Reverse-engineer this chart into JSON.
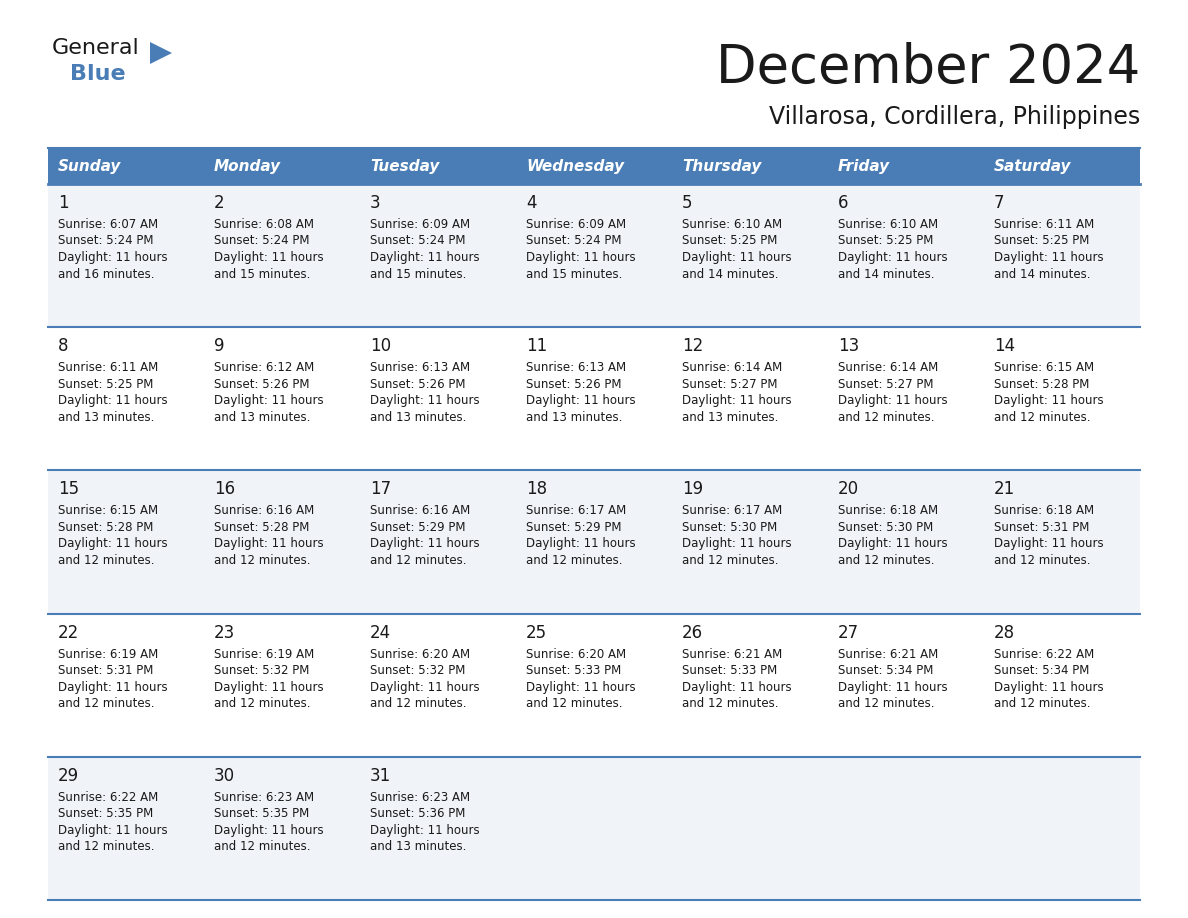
{
  "title": "December 2024",
  "subtitle": "Villarosa, Cordillera, Philippines",
  "header_color": "#4a7db5",
  "header_text_color": "#FFFFFF",
  "grid_line_color": "#4a7db5",
  "day_names": [
    "Sunday",
    "Monday",
    "Tuesday",
    "Wednesday",
    "Thursday",
    "Friday",
    "Saturday"
  ],
  "background_color": "#FFFFFF",
  "cell_bg_even": "#f0f4f8",
  "cell_bg_odd": "#FFFFFF",
  "days": [
    {
      "day": 1,
      "col": 0,
      "row": 0,
      "sunrise": "6:07 AM",
      "sunset": "5:24 PM",
      "daylight": "11 hours and 16 minutes."
    },
    {
      "day": 2,
      "col": 1,
      "row": 0,
      "sunrise": "6:08 AM",
      "sunset": "5:24 PM",
      "daylight": "11 hours and 15 minutes."
    },
    {
      "day": 3,
      "col": 2,
      "row": 0,
      "sunrise": "6:09 AM",
      "sunset": "5:24 PM",
      "daylight": "11 hours and 15 minutes."
    },
    {
      "day": 4,
      "col": 3,
      "row": 0,
      "sunrise": "6:09 AM",
      "sunset": "5:24 PM",
      "daylight": "11 hours and 15 minutes."
    },
    {
      "day": 5,
      "col": 4,
      "row": 0,
      "sunrise": "6:10 AM",
      "sunset": "5:25 PM",
      "daylight": "11 hours and 14 minutes."
    },
    {
      "day": 6,
      "col": 5,
      "row": 0,
      "sunrise": "6:10 AM",
      "sunset": "5:25 PM",
      "daylight": "11 hours and 14 minutes."
    },
    {
      "day": 7,
      "col": 6,
      "row": 0,
      "sunrise": "6:11 AM",
      "sunset": "5:25 PM",
      "daylight": "11 hours and 14 minutes."
    },
    {
      "day": 8,
      "col": 0,
      "row": 1,
      "sunrise": "6:11 AM",
      "sunset": "5:25 PM",
      "daylight": "11 hours and 13 minutes."
    },
    {
      "day": 9,
      "col": 1,
      "row": 1,
      "sunrise": "6:12 AM",
      "sunset": "5:26 PM",
      "daylight": "11 hours and 13 minutes."
    },
    {
      "day": 10,
      "col": 2,
      "row": 1,
      "sunrise": "6:13 AM",
      "sunset": "5:26 PM",
      "daylight": "11 hours and 13 minutes."
    },
    {
      "day": 11,
      "col": 3,
      "row": 1,
      "sunrise": "6:13 AM",
      "sunset": "5:26 PM",
      "daylight": "11 hours and 13 minutes."
    },
    {
      "day": 12,
      "col": 4,
      "row": 1,
      "sunrise": "6:14 AM",
      "sunset": "5:27 PM",
      "daylight": "11 hours and 13 minutes."
    },
    {
      "day": 13,
      "col": 5,
      "row": 1,
      "sunrise": "6:14 AM",
      "sunset": "5:27 PM",
      "daylight": "11 hours and 12 minutes."
    },
    {
      "day": 14,
      "col": 6,
      "row": 1,
      "sunrise": "6:15 AM",
      "sunset": "5:28 PM",
      "daylight": "11 hours and 12 minutes."
    },
    {
      "day": 15,
      "col": 0,
      "row": 2,
      "sunrise": "6:15 AM",
      "sunset": "5:28 PM",
      "daylight": "11 hours and 12 minutes."
    },
    {
      "day": 16,
      "col": 1,
      "row": 2,
      "sunrise": "6:16 AM",
      "sunset": "5:28 PM",
      "daylight": "11 hours and 12 minutes."
    },
    {
      "day": 17,
      "col": 2,
      "row": 2,
      "sunrise": "6:16 AM",
      "sunset": "5:29 PM",
      "daylight": "11 hours and 12 minutes."
    },
    {
      "day": 18,
      "col": 3,
      "row": 2,
      "sunrise": "6:17 AM",
      "sunset": "5:29 PM",
      "daylight": "11 hours and 12 minutes."
    },
    {
      "day": 19,
      "col": 4,
      "row": 2,
      "sunrise": "6:17 AM",
      "sunset": "5:30 PM",
      "daylight": "11 hours and 12 minutes."
    },
    {
      "day": 20,
      "col": 5,
      "row": 2,
      "sunrise": "6:18 AM",
      "sunset": "5:30 PM",
      "daylight": "11 hours and 12 minutes."
    },
    {
      "day": 21,
      "col": 6,
      "row": 2,
      "sunrise": "6:18 AM",
      "sunset": "5:31 PM",
      "daylight": "11 hours and 12 minutes."
    },
    {
      "day": 22,
      "col": 0,
      "row": 3,
      "sunrise": "6:19 AM",
      "sunset": "5:31 PM",
      "daylight": "11 hours and 12 minutes."
    },
    {
      "day": 23,
      "col": 1,
      "row": 3,
      "sunrise": "6:19 AM",
      "sunset": "5:32 PM",
      "daylight": "11 hours and 12 minutes."
    },
    {
      "day": 24,
      "col": 2,
      "row": 3,
      "sunrise": "6:20 AM",
      "sunset": "5:32 PM",
      "daylight": "11 hours and 12 minutes."
    },
    {
      "day": 25,
      "col": 3,
      "row": 3,
      "sunrise": "6:20 AM",
      "sunset": "5:33 PM",
      "daylight": "11 hours and 12 minutes."
    },
    {
      "day": 26,
      "col": 4,
      "row": 3,
      "sunrise": "6:21 AM",
      "sunset": "5:33 PM",
      "daylight": "11 hours and 12 minutes."
    },
    {
      "day": 27,
      "col": 5,
      "row": 3,
      "sunrise": "6:21 AM",
      "sunset": "5:34 PM",
      "daylight": "11 hours and 12 minutes."
    },
    {
      "day": 28,
      "col": 6,
      "row": 3,
      "sunrise": "6:22 AM",
      "sunset": "5:34 PM",
      "daylight": "11 hours and 12 minutes."
    },
    {
      "day": 29,
      "col": 0,
      "row": 4,
      "sunrise": "6:22 AM",
      "sunset": "5:35 PM",
      "daylight": "11 hours and 12 minutes."
    },
    {
      "day": 30,
      "col": 1,
      "row": 4,
      "sunrise": "6:23 AM",
      "sunset": "5:35 PM",
      "daylight": "11 hours and 12 minutes."
    },
    {
      "day": 31,
      "col": 2,
      "row": 4,
      "sunrise": "6:23 AM",
      "sunset": "5:36 PM",
      "daylight": "11 hours and 13 minutes."
    }
  ],
  "logo_text_general": "General",
  "logo_text_blue": "Blue",
  "logo_color_general": "#1a1a1a",
  "logo_color_blue": "#4a7db5",
  "logo_triangle_color": "#4a7db5",
  "title_fontsize": 38,
  "subtitle_fontsize": 17,
  "header_fontsize": 11,
  "day_num_fontsize": 12,
  "cell_text_fontsize": 8.5
}
